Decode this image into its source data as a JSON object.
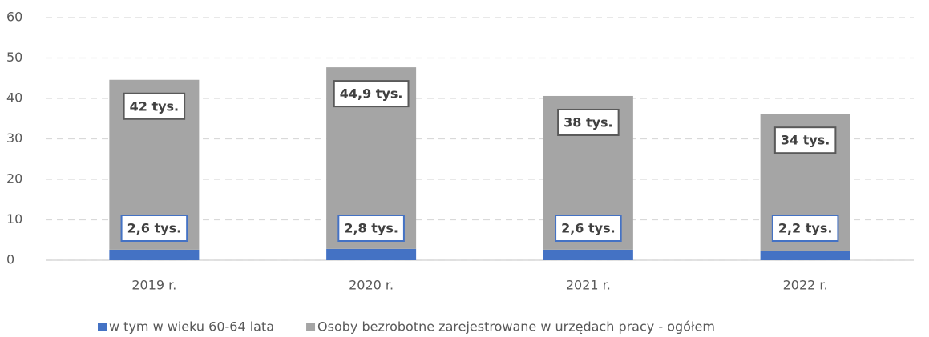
{
  "chart_data": {
    "type": "stacked_bar",
    "categories": [
      "2019 r.",
      "2020 r.",
      "2021 r.",
      "2022 r."
    ],
    "series": [
      {
        "name": "w tym w wieku 60-64 lata",
        "color": "#4472c4",
        "values": [
          2.6,
          2.8,
          2.6,
          2.2
        ],
        "value_labels": [
          "2,6 tys.",
          "2,8 tys.",
          "2,6 tys.",
          "2,2 tys."
        ]
      },
      {
        "name": "Osoby bezrobotne zarejestrowane w urzędach pracy - ogółem",
        "color": "#a5a5a5",
        "values": [
          42,
          44.9,
          38,
          34
        ],
        "value_labels": [
          "42 tys.",
          "44,9 tys.",
          "38 tys.",
          "34 tys."
        ]
      }
    ],
    "ylim": [
      0,
      60
    ],
    "yticks": [
      0,
      10,
      20,
      30,
      40,
      50,
      60
    ],
    "grid": true,
    "legend": "bottom"
  }
}
